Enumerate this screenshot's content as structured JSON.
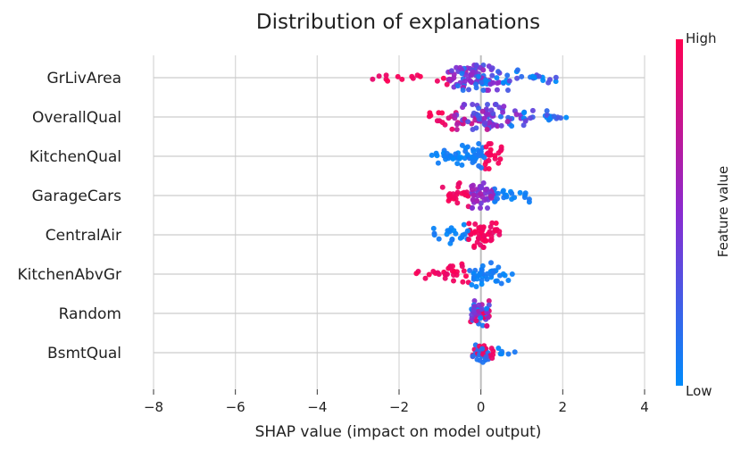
{
  "chart_data": {
    "type": "scatter",
    "subtype": "shap-beeswarm",
    "title": "Distribution of explanations",
    "xlabel": "SHAP value (impact on model output)",
    "ylabel": "",
    "xlim": [
      -8,
      4
    ],
    "xticks": [
      -8,
      -6,
      -4,
      -2,
      0,
      2,
      4
    ],
    "grid": "vertical",
    "colorbar": {
      "label": "Feature value",
      "high_label": "High",
      "low_label": "Low",
      "high_color": "#ff0052",
      "mid_color": "#8a2bd0",
      "low_color": "#008bfb"
    },
    "features": [
      {
        "name": "GrLivArea",
        "value_range": [
          -2.85,
          1.95
        ],
        "spread": 0.16,
        "density": 130,
        "pattern": "mixed-high-left"
      },
      {
        "name": "OverallQual",
        "value_range": [
          -1.3,
          2.25
        ],
        "spread": 0.14,
        "density": 120,
        "pattern": "mixed-high-left"
      },
      {
        "name": "KitchenQual",
        "value_range": [
          -1.2,
          0.5
        ],
        "spread": 0.12,
        "density": 80,
        "pattern": "low-left-high-right"
      },
      {
        "name": "GarageCars",
        "value_range": [
          -1.0,
          1.25
        ],
        "spread": 0.12,
        "density": 90,
        "pattern": "high-left-mid-center-low-right"
      },
      {
        "name": "CentralAir",
        "value_range": [
          -1.3,
          0.45
        ],
        "spread": 0.1,
        "density": 70,
        "pattern": "low-left-high-center"
      },
      {
        "name": "KitchenAbvGr",
        "value_range": [
          -1.6,
          0.8
        ],
        "spread": 0.1,
        "density": 70,
        "pattern": "high-left-low-center"
      },
      {
        "name": "Random",
        "value_range": [
          -0.25,
          0.2
        ],
        "spread": 0.1,
        "density": 60,
        "pattern": "mixed-center"
      },
      {
        "name": "BsmtQual",
        "value_range": [
          -0.2,
          0.85
        ],
        "spread": 0.08,
        "density": 50,
        "pattern": "high-center-low-right"
      }
    ]
  }
}
